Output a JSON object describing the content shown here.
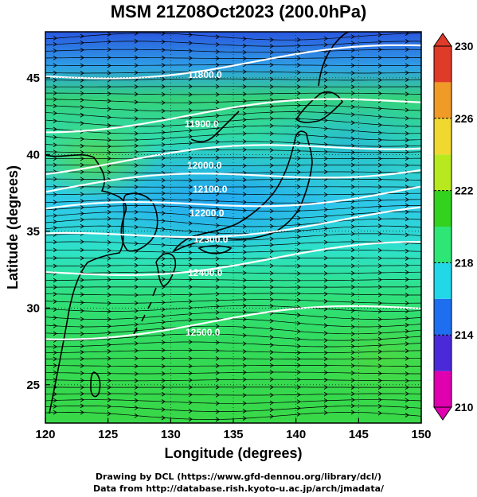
{
  "title": "MSM 21Z08Oct2023 (200.0hPa)",
  "xaxis": {
    "label": "Longitude (degrees)",
    "range": [
      120,
      150
    ],
    "ticks": [
      120,
      125,
      130,
      135,
      140,
      145,
      150
    ]
  },
  "yaxis": {
    "label": "Latitude  (degrees)",
    "range": [
      22.5,
      48
    ],
    "ticks": [
      25,
      30,
      35,
      40,
      45
    ]
  },
  "colorbar": {
    "range": [
      210,
      230
    ],
    "tick_labels": [
      "230",
      "226",
      "222",
      "218",
      "214",
      "210"
    ],
    "colors": [
      "#e000b0",
      "#4a2ad8",
      "#1e6ef0",
      "#22d8e8",
      "#2ee676",
      "#32d21e",
      "#b8e81e",
      "#f0d830",
      "#f09a28",
      "#e03a28"
    ]
  },
  "contours": [
    {
      "label": "11800.0"
    },
    {
      "label": "11900.0"
    },
    {
      "label": "12000.0"
    },
    {
      "label": "12100.0"
    },
    {
      "label": "12200.0"
    },
    {
      "label": "12300.0"
    },
    {
      "label": "12400.0"
    },
    {
      "label": "12500.0"
    }
  ],
  "credits": [
    "Drawing by DCL (https://www.gfd-dennou.org/library/dcl/)",
    "Data from http://database.rish.kyoto-u.ac.jp/arch/jmadata/"
  ]
}
